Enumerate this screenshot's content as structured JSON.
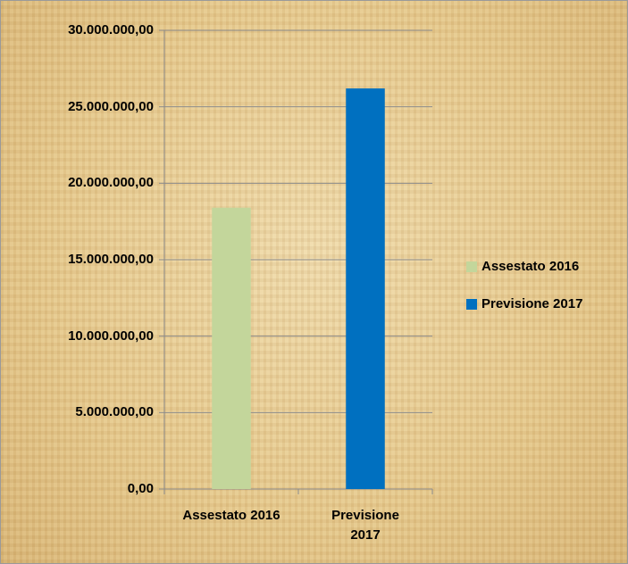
{
  "chart_data": {
    "type": "bar",
    "categories": [
      "Assestato 2016",
      "Previsione 2017"
    ],
    "values": [
      18400000,
      26200000
    ],
    "colors": [
      "#c3d69b",
      "#0070c0"
    ],
    "ylim": [
      0,
      30000000
    ],
    "yticks": [
      {
        "value": 0,
        "label": "0,00"
      },
      {
        "value": 5000000,
        "label": "5.000.000,00"
      },
      {
        "value": 10000000,
        "label": "10.000.000,00"
      },
      {
        "value": 15000000,
        "label": "15.000.000,00"
      },
      {
        "value": 20000000,
        "label": "20.000.000,00"
      },
      {
        "value": 25000000,
        "label": "25.000.000,00"
      },
      {
        "value": 30000000,
        "label": "30.000.000,00"
      }
    ],
    "grid": true,
    "legend": "right"
  }
}
